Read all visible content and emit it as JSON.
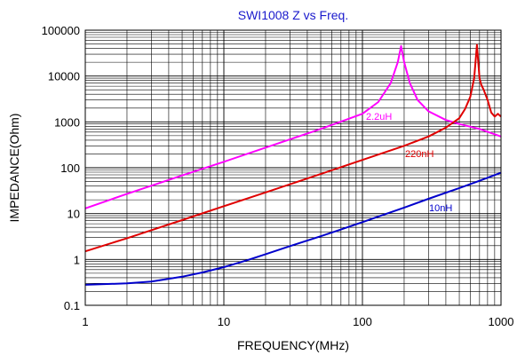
{
  "chart_data": {
    "type": "line",
    "title": "SWI1008 Z vs Freq.",
    "xlabel": "FREQUENCY(MHz)",
    "ylabel": "IMPEDANCE(Ohm)",
    "x_scale": "log",
    "y_scale": "log",
    "xlim": [
      1,
      1000
    ],
    "ylim": [
      0.1,
      100000
    ],
    "x_ticks": [
      "1",
      "10",
      "100",
      "1000"
    ],
    "y_ticks": [
      "0.1",
      "1",
      "10",
      "100",
      "1000",
      "10000",
      "100000"
    ],
    "grid": true,
    "colors": {
      "title": "#1a1acc",
      "grid": "#000000"
    },
    "series": [
      {
        "name": "2.2uH",
        "color": "#ff00ff",
        "x": [
          1,
          2,
          5,
          10,
          20,
          50,
          100,
          130,
          160,
          180,
          190,
          200,
          220,
          250,
          300,
          400,
          500,
          700,
          1000
        ],
        "y": [
          13,
          27,
          68,
          135,
          275,
          700,
          1500,
          2700,
          7000,
          20000,
          45000,
          20000,
          7000,
          3000,
          1700,
          1100,
          900,
          700,
          480
        ]
      },
      {
        "name": "220nH",
        "color": "#e00000",
        "x": [
          1,
          2,
          5,
          10,
          20,
          50,
          100,
          200,
          300,
          400,
          500,
          550,
          600,
          640,
          670,
          685,
          700,
          720,
          750,
          800,
          850,
          900,
          950,
          1000
        ],
        "y": [
          1.5,
          2.9,
          7.2,
          14.5,
          29,
          73,
          148,
          300,
          480,
          750,
          1200,
          1900,
          3500,
          9000,
          48000,
          20000,
          9000,
          6500,
          5000,
          3000,
          1600,
          1300,
          1500,
          1300
        ]
      },
      {
        "name": "10nH",
        "color": "#0000cc",
        "x": [
          1,
          2,
          3,
          5,
          7,
          10,
          15,
          20,
          30,
          50,
          70,
          100,
          150,
          200,
          300,
          500,
          700,
          1000
        ],
        "y": [
          0.28,
          0.3,
          0.33,
          0.42,
          0.52,
          0.68,
          0.98,
          1.3,
          1.95,
          3.2,
          4.5,
          6.5,
          10,
          13.5,
          21,
          36,
          52,
          78
        ]
      }
    ]
  }
}
